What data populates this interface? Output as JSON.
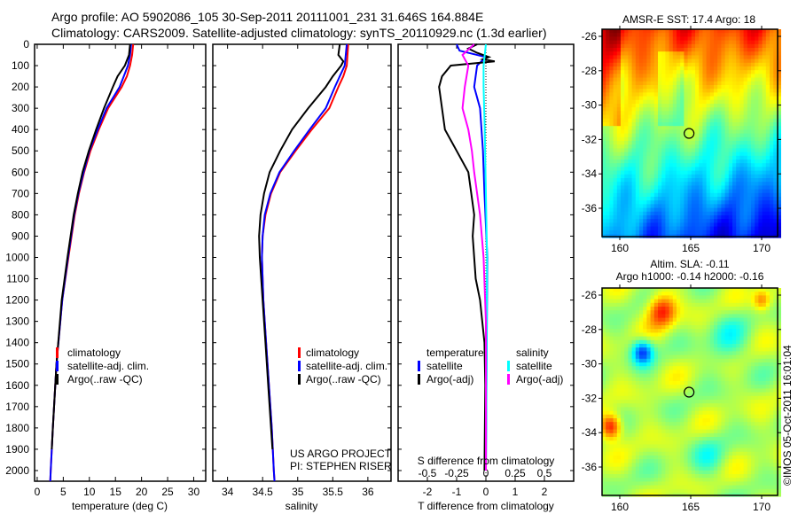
{
  "title": {
    "line1": "Argo profile: AO 5902086_105 30-Sep-2011 20111001_231 31.646S 164.884E",
    "line2": "Climatology: CARS2009. Satellite-adjusted climatology: synTS_20110929.nc (1.3d earlier)"
  },
  "colors": {
    "climatology": "#ff0000",
    "satellite": "#0000ff",
    "argo": "#000000",
    "sal_satellite": "#00ffff",
    "sal_argo": "#ff00ff"
  },
  "chart_data": [
    {
      "type": "line",
      "xlabel": "temperature (deg C)",
      "xticks": [
        "0",
        "5",
        "10",
        "15",
        "20",
        "25",
        "30"
      ],
      "xlim": [
        -0.5,
        32.3
      ],
      "ylim": [
        2050,
        0
      ],
      "yticks": [
        "0",
        "100",
        "200",
        "300",
        "400",
        "500",
        "600",
        "700",
        "800",
        "900",
        "1000",
        "1100",
        "1200",
        "1300",
        "1400",
        "1500",
        "1600",
        "1700",
        "1800",
        "1900",
        "2000"
      ],
      "legend": [
        "climatology",
        "satellite-adj. clim.",
        "Argo(..raw -QC)"
      ],
      "series": [
        {
          "name": "climatology",
          "depth": [
            0,
            50,
            100,
            150,
            200,
            300,
            400,
            500,
            600,
            700,
            800,
            1000,
            1200,
            1500,
            1800,
            2000,
            2050
          ],
          "values": [
            18.4,
            18.2,
            17.8,
            17.2,
            16.2,
            13.6,
            11.8,
            10.2,
            9.0,
            8.0,
            7.2,
            6.0,
            4.8,
            3.7,
            3.0,
            2.6,
            2.5
          ]
        },
        {
          "name": "satellite-adj. clim.",
          "depth": [
            0,
            50,
            100,
            150,
            200,
            300,
            400,
            500,
            600,
            700,
            800,
            1000,
            1200,
            1500,
            1800,
            2000,
            2050
          ],
          "values": [
            18.0,
            17.8,
            17.4,
            16.6,
            15.8,
            13.3,
            11.6,
            10.0,
            8.9,
            7.9,
            7.1,
            5.9,
            4.8,
            3.7,
            3.0,
            2.6,
            2.5
          ]
        },
        {
          "name": "Argo(..raw -QC)",
          "depth": [
            0,
            50,
            100,
            150,
            200,
            300,
            400,
            500,
            600,
            700,
            800,
            1000,
            1200,
            1500,
            1800,
            1900
          ],
          "values": [
            17.8,
            17.6,
            16.8,
            15.4,
            14.5,
            12.8,
            11.3,
            9.9,
            8.7,
            7.8,
            7.0,
            5.8,
            4.7,
            3.7,
            3.0,
            2.8
          ]
        }
      ]
    },
    {
      "type": "line",
      "xlabel": "salinity",
      "xticks": [
        "34",
        "34.5",
        "35",
        "35.5",
        "36"
      ],
      "xlim": [
        33.79,
        36.33
      ],
      "ylim": [
        2050,
        0
      ],
      "legend": [
        "climatology",
        "satellite-adj. clim.",
        "Argo(..raw -QC)"
      ],
      "annotation": [
        "US ARGO PROJECT",
        "PI: STEPHEN RISER"
      ],
      "series": [
        {
          "name": "climatology",
          "depth": [
            0,
            100,
            150,
            200,
            300,
            400,
            500,
            600,
            700,
            800,
            900,
            1000,
            1200,
            1400,
            1600,
            1800,
            2000,
            2050
          ],
          "values": [
            35.72,
            35.7,
            35.65,
            35.58,
            35.45,
            35.2,
            34.97,
            34.75,
            34.62,
            34.54,
            34.5,
            34.49,
            34.51,
            34.55,
            34.59,
            34.63,
            34.66,
            34.67
          ]
        },
        {
          "name": "satellite-adj. clim.",
          "depth": [
            0,
            100,
            150,
            200,
            300,
            400,
            500,
            600,
            700,
            800,
            900,
            1000,
            1200,
            1400,
            1600,
            1800,
            2000,
            2050
          ],
          "values": [
            35.7,
            35.67,
            35.6,
            35.53,
            35.4,
            35.17,
            34.95,
            34.74,
            34.61,
            34.53,
            34.5,
            34.49,
            34.51,
            34.55,
            34.59,
            34.63,
            34.66,
            34.67
          ]
        },
        {
          "name": "Argo(..raw -QC)",
          "depth": [
            0,
            50,
            80,
            100,
            150,
            200,
            300,
            400,
            500,
            600,
            700,
            800,
            900,
            1000,
            1200,
            1400,
            1600,
            1800,
            1900
          ],
          "values": [
            35.6,
            35.58,
            35.65,
            35.62,
            35.5,
            35.4,
            35.15,
            34.92,
            34.75,
            34.6,
            34.52,
            34.47,
            34.45,
            34.46,
            34.5,
            34.54,
            34.58,
            34.62,
            34.64
          ]
        }
      ]
    },
    {
      "type": "line",
      "xlabel": "T difference from climatology",
      "xlabel2": "S difference from climatology",
      "xticks": [
        "-2",
        "-1",
        "0",
        "1",
        "2"
      ],
      "xticks2": [
        "-0.5",
        "-0.25",
        "0",
        "0.25",
        "0.5"
      ],
      "xlim": [
        -3,
        3
      ],
      "ylim": [
        2050,
        0
      ],
      "legend_titles": [
        "temperature",
        "salinity"
      ],
      "legend": [
        "satellite",
        "Argo(-adj)",
        "satellite",
        "Argo(-adj)"
      ],
      "series": [
        {
          "name": "T satellite",
          "depth": [
            0,
            30,
            60,
            100,
            200,
            300,
            500,
            700,
            1000,
            2000
          ],
          "values": [
            -1.0,
            -0.9,
            0.0,
            -0.3,
            -0.4,
            -0.2,
            -0.1,
            -0.05,
            0.05,
            0.0
          ]
        },
        {
          "name": "T Argo(-adj)",
          "depth": [
            0,
            20,
            40,
            60,
            70,
            80,
            100,
            150,
            200,
            300,
            400,
            500,
            600,
            700,
            800,
            900,
            1000,
            1100,
            1200,
            1400,
            1600,
            2000
          ],
          "values": [
            -0.3,
            -0.6,
            -0.3,
            0.1,
            -0.1,
            0.3,
            -1.2,
            -1.5,
            -1.6,
            -1.5,
            -1.4,
            -1.0,
            -0.6,
            -0.5,
            -0.4,
            -0.45,
            -0.4,
            -0.35,
            -0.2,
            -0.05,
            -0.02,
            -0.05
          ]
        },
        {
          "name": "S satellite",
          "depth": [
            0,
            100,
            200,
            400,
            700,
            1000,
            2000
          ],
          "values": [
            0.0,
            -0.02,
            -0.02,
            -0.01,
            0.0,
            0.01,
            0.0
          ]
        },
        {
          "name": "S Argo(-adj)",
          "depth": [
            0,
            50,
            100,
            200,
            300,
            400,
            500,
            600,
            800,
            1000,
            1300,
            2000
          ],
          "values": [
            -0.1,
            -0.2,
            -0.15,
            -0.18,
            -0.2,
            -0.15,
            -0.12,
            -0.1,
            -0.05,
            -0.02,
            0.0,
            0.0
          ]
        }
      ]
    },
    {
      "type": "heatmap",
      "title": "AMSR-E SST: 17.4 Argo: 18",
      "yticks": [
        "-26",
        "-28",
        "-30",
        "-32",
        "-34",
        "-36"
      ],
      "xticks": [
        "160",
        "165",
        "170"
      ],
      "marker": {
        "lon": 164.884,
        "lat": -31.646
      }
    },
    {
      "type": "heatmap",
      "title": "Altim. SLA: -0.11",
      "subtitle": "Argo h1000: -0.14 h2000: -0.16",
      "yticks": [
        "-26",
        "-28",
        "-30",
        "-32",
        "-34",
        "-36"
      ],
      "xticks": [
        "160",
        "165",
        "170"
      ],
      "marker": {
        "lon": 164.884,
        "lat": -31.646
      }
    }
  ],
  "credit": "©IMOS 05-Oct-2011 16:01:04"
}
